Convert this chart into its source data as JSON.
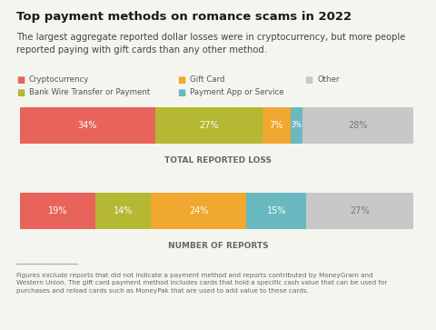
{
  "title": "Top payment methods on romance scams in 2022",
  "subtitle": "The largest aggregate reported dollar losses were in cryptocurrency, but more people\nreported paying with gift cards than any other method.",
  "legend": [
    {
      "label": "Cryptocurrency",
      "color": "#e8635a"
    },
    {
      "label": "Gift Card",
      "color": "#f0a830"
    },
    {
      "label": "Other",
      "color": "#c8c8c8"
    },
    {
      "label": "Bank Wire Transfer or Payment",
      "color": "#b5b832"
    },
    {
      "label": "Payment App or Service",
      "color": "#6ab8c0"
    }
  ],
  "bar1": {
    "label": "TOTAL REPORTED LOSS",
    "segments": [
      {
        "label": "Cryptocurrency",
        "value": 34,
        "color": "#e8635a",
        "text_color": "#ffffff"
      },
      {
        "label": "Bank Wire Transfer or Payment",
        "value": 27,
        "color": "#b5b832",
        "text_color": "#ffffff"
      },
      {
        "label": "Gift Card",
        "value": 7,
        "color": "#f0a830",
        "text_color": "#ffffff"
      },
      {
        "label": "Payment App or Service",
        "value": 3,
        "color": "#6ab8c0",
        "text_color": "#ffffff"
      },
      {
        "label": "Other",
        "value": 28,
        "color": "#c8c8c8",
        "text_color": "#777777"
      }
    ]
  },
  "bar2": {
    "label": "NUMBER OF REPORTS",
    "segments": [
      {
        "label": "Cryptocurrency",
        "value": 19,
        "color": "#e8635a",
        "text_color": "#ffffff"
      },
      {
        "label": "Bank Wire Transfer or Payment",
        "value": 14,
        "color": "#b5b832",
        "text_color": "#ffffff"
      },
      {
        "label": "Gift Card",
        "value": 24,
        "color": "#f0a830",
        "text_color": "#ffffff"
      },
      {
        "label": "Payment App or Service",
        "value": 15,
        "color": "#6ab8c0",
        "text_color": "#ffffff"
      },
      {
        "label": "Other",
        "value": 27,
        "color": "#c8c8c8",
        "text_color": "#777777"
      }
    ]
  },
  "footnote": "Figures exclude reports that did not indicate a payment method and reports contributed by MoneyGram and\nWestern Union. The gift card payment method includes cards that hold a specific cash value that can be used for\npurchases and reload cards such as MoneyPak that are used to add value to these cards.",
  "bg_color": "#f5f5f0",
  "bar_label_color": "#666666",
  "title_fontsize": 9.5,
  "subtitle_fontsize": 7.2,
  "legend_fontsize": 6.2,
  "bar_pct_fontsize": 7.0,
  "bar_label_fontsize": 6.5,
  "footnote_fontsize": 5.2
}
